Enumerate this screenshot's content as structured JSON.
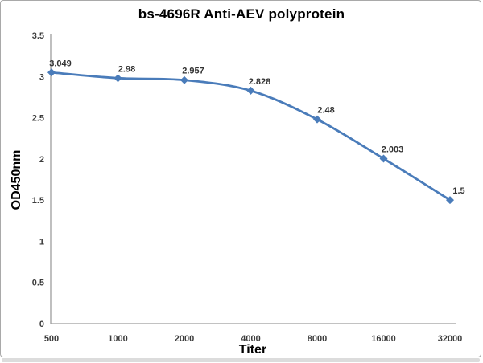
{
  "chart_data": {
    "type": "line",
    "title": "bs-4696R Anti-AEV polyprotein",
    "xlabel": "Titer",
    "ylabel": "OD450nm",
    "categories": [
      "500",
      "1000",
      "2000",
      "4000",
      "8000",
      "16000",
      "32000"
    ],
    "series": [
      {
        "name": "OD450nm",
        "values": [
          3.049,
          2.98,
          2.957,
          2.828,
          2.48,
          2.003,
          1.5
        ]
      }
    ],
    "point_labels": [
      "3.049",
      "2.98",
      "2.957",
      "2.828",
      "2.48",
      "2.003",
      "1.5"
    ],
    "ytick_labels": [
      "0",
      "0.5",
      "1",
      "1.5",
      "2",
      "2.5",
      "3",
      "3.5"
    ],
    "yticks": [
      0,
      0.5,
      1,
      1.5,
      2,
      2.5,
      3,
      3.5
    ],
    "ylim": [
      0,
      3.5
    ],
    "grid": "off",
    "legend": "none",
    "line_style": "smooth",
    "marker": "diamond",
    "colors": {
      "line": "#4a7cba",
      "marker": "#4a7cba",
      "axis": "#9d9d9d",
      "tick_text": "#3c3c3c",
      "data_label_text": "#333333",
      "title_text": "#000000"
    }
  }
}
